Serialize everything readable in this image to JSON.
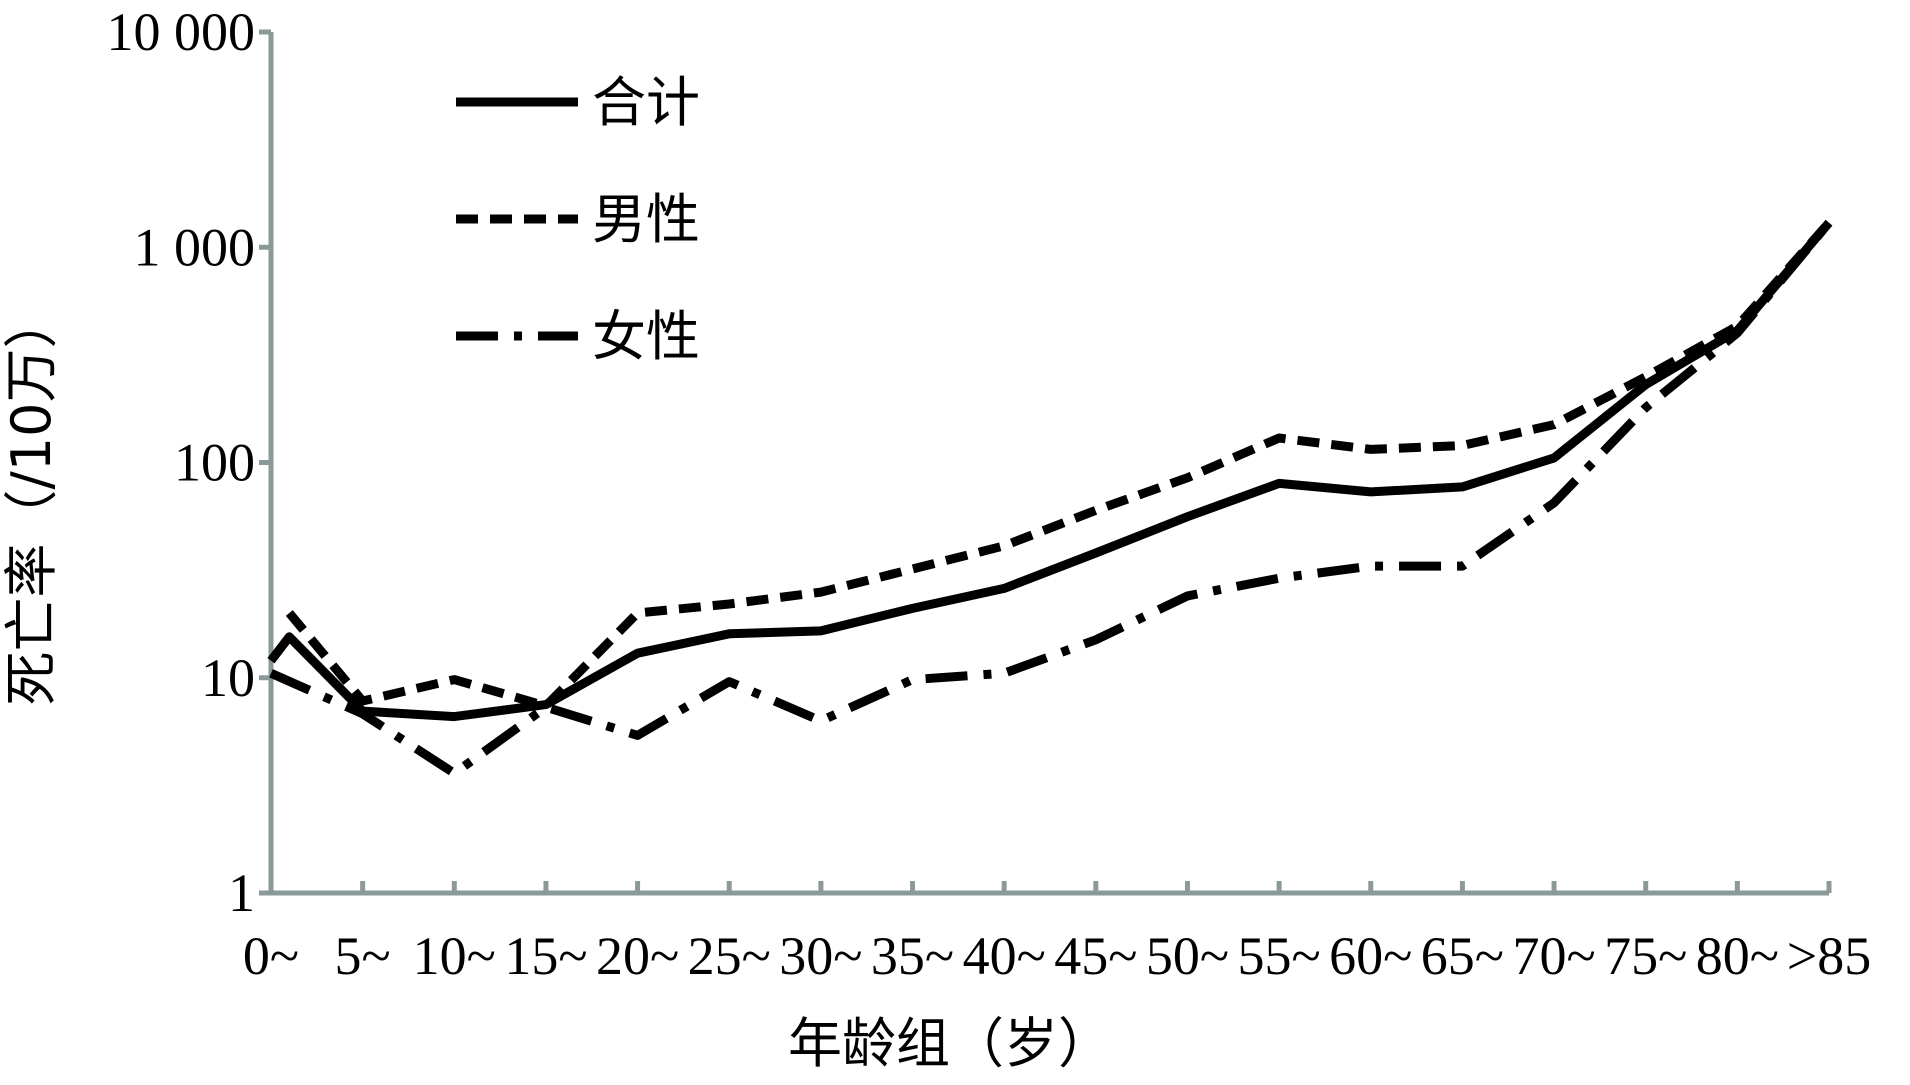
{
  "chart_data": {
    "type": "line",
    "y_scale": "log",
    "ylim": [
      1,
      10000
    ],
    "y_ticks": [
      {
        "value": 1,
        "label": "1"
      },
      {
        "value": 10,
        "label": "10"
      },
      {
        "value": 100,
        "label": "100"
      },
      {
        "value": 1000,
        "label": "1 000"
      },
      {
        "value": 10000,
        "label": "10 000"
      }
    ],
    "xlabel": "年龄组（岁）",
    "ylabel": "死亡率（/10万）",
    "x_tick_labels": [
      "0~",
      "5~",
      "10~",
      "15~",
      "20~",
      "25~",
      "30~",
      "35~",
      "40~",
      "45~",
      "50~",
      "55~",
      "60~",
      "65~",
      "70~",
      "75~",
      "80~",
      ">85"
    ],
    "x_positions": [
      0,
      1,
      2,
      3,
      4,
      5,
      6,
      7,
      8,
      9,
      10,
      11,
      12,
      13,
      14,
      15,
      16,
      17
    ],
    "legend_position": "top-left",
    "grid": false,
    "axis_color": "#8a9a99",
    "series": [
      {
        "name": "合计",
        "style": "solid",
        "x": [
          0,
          0.2,
          1,
          2,
          3,
          4,
          5,
          6,
          7,
          8,
          9,
          10,
          11,
          12,
          13,
          14,
          15,
          16,
          17
        ],
        "values": [
          12,
          15.5,
          7,
          6.6,
          7.5,
          13,
          16,
          16.5,
          21,
          26,
          38,
          56,
          80,
          73,
          77,
          105,
          230,
          410,
          1300
        ]
      },
      {
        "name": "男性",
        "style": "dashed",
        "x": [
          0.2,
          1,
          2,
          3,
          4,
          5,
          6,
          7,
          8,
          9,
          10,
          11,
          12,
          13,
          14,
          15,
          16,
          17
        ],
        "values": [
          20,
          7.8,
          9.8,
          7.4,
          20,
          22,
          25,
          32,
          41,
          60,
          85,
          130,
          115,
          120,
          150,
          250,
          430,
          1300
        ]
      },
      {
        "name": "女性",
        "style": "dashdot",
        "x": [
          0,
          1,
          2,
          3,
          4,
          5,
          6,
          7,
          8,
          9,
          10,
          11,
          12,
          13,
          14,
          15,
          16,
          17
        ],
        "values": [
          10.5,
          6.8,
          3.6,
          7.3,
          5.4,
          9.6,
          6.3,
          9.8,
          10.5,
          15,
          24,
          29,
          33,
          33,
          65,
          180,
          400,
          1300
        ]
      }
    ],
    "colors": {
      "lines": "#000000",
      "axis": "#8a9a99"
    }
  }
}
